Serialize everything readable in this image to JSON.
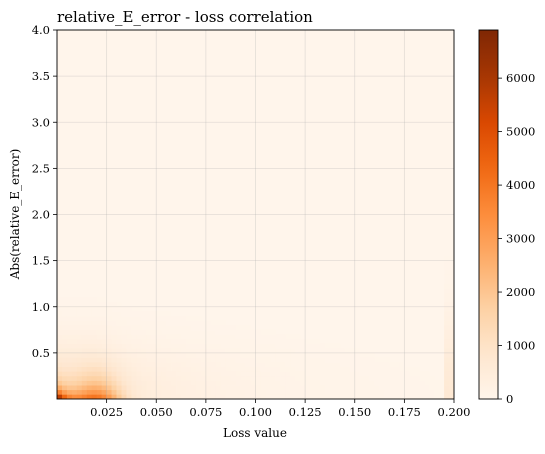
{
  "chart_data": {
    "type": "heatmap",
    "title": "relative_E_error - loss correlation",
    "xlabel": "Loss value",
    "ylabel": "Abs(relative_E_error)",
    "xlim": [
      0.0,
      0.2
    ],
    "ylim": [
      0.0,
      4.0
    ],
    "x_ticks": [
      0.025,
      0.05,
      0.075,
      0.1,
      0.125,
      0.15,
      0.175,
      0.2
    ],
    "x_tick_labels": [
      "0.025",
      "0.050",
      "0.075",
      "0.100",
      "0.125",
      "0.150",
      "0.175",
      "0.200"
    ],
    "y_ticks": [
      0.5,
      1.0,
      1.5,
      2.0,
      2.5,
      3.0,
      3.5,
      4.0
    ],
    "y_tick_labels": [
      "0.5",
      "1.0",
      "1.5",
      "2.0",
      "2.5",
      "3.0",
      "3.5",
      "4.0"
    ],
    "grid": true,
    "colormap": "Oranges",
    "colorbar": {
      "min": 0,
      "max": 6900,
      "ticks": [
        0,
        1000,
        2000,
        3000,
        4000,
        5000,
        6000
      ],
      "tick_labels": [
        "0",
        "1000",
        "2000",
        "3000",
        "4000",
        "5000",
        "6000"
      ]
    },
    "peak": {
      "x": 0.002,
      "y": 0.05,
      "value": 6900
    },
    "bins": {
      "x": 80,
      "y": 80
    }
  }
}
